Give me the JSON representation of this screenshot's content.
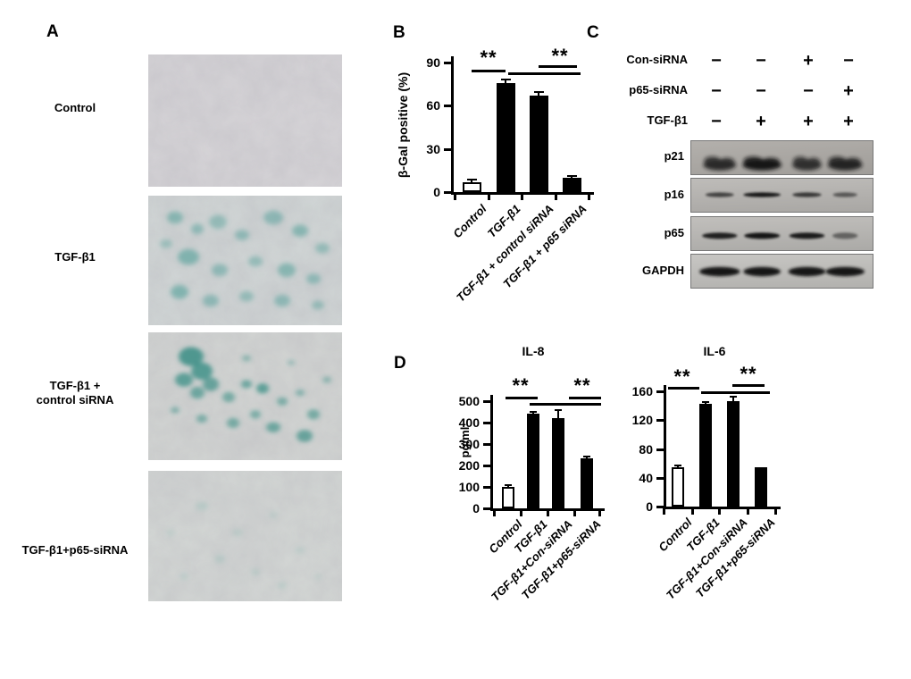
{
  "panel_a": {
    "label": "A",
    "images": [
      {
        "label": "Control",
        "xgal_staining": "negative"
      },
      {
        "label": "TGF-β1",
        "xgal_staining": "strong"
      },
      {
        "label": "TGF-β1 +\ncontrol siRNA",
        "xgal_staining": "strong"
      },
      {
        "label": "TGF-β1+p65-siRNA",
        "xgal_staining": "weak"
      }
    ]
  },
  "panel_b": {
    "label": "B"
  },
  "panel_c": {
    "label": "C",
    "conditions": [
      {
        "name": "Con-siRNA",
        "lanes": [
          "−",
          "−",
          "+",
          "−"
        ]
      },
      {
        "name": "p65-siRNA",
        "lanes": [
          "−",
          "−",
          "−",
          "+"
        ]
      },
      {
        "name": "TGF-β1",
        "lanes": [
          "−",
          "+",
          "+",
          "+"
        ]
      }
    ],
    "blots": [
      {
        "name": "p21",
        "band_intensities": [
          0.8,
          1.0,
          0.75,
          0.85
        ]
      },
      {
        "name": "p16",
        "band_intensities": [
          0.6,
          1.0,
          0.7,
          0.4
        ]
      },
      {
        "name": "p65",
        "band_intensities": [
          0.9,
          1.0,
          0.95,
          0.3
        ]
      },
      {
        "name": "GAPDH",
        "band_intensities": [
          1.0,
          1.0,
          1.0,
          1.0
        ]
      }
    ]
  },
  "panel_d": {
    "label": "D"
  },
  "chart_data": [
    {
      "id": "beta-gal",
      "type": "bar",
      "title": "",
      "ylabel": "β-Gal positive (%)",
      "ylim": [
        0,
        90
      ],
      "yticks": [
        0,
        30,
        60,
        90
      ],
      "categories": [
        "Control",
        "TGF-β1",
        "TGF-β1 + control siRNA",
        "TGF-β1 + p65 siRNA"
      ],
      "values": [
        7,
        76,
        67,
        10
      ],
      "errors": [
        1.5,
        2,
        2.5,
        1
      ],
      "bar_colors": [
        "#ffffff",
        "#000000",
        "#000000",
        "#000000"
      ],
      "grid": false,
      "significance": [
        {
          "label": "**",
          "compares": [
            "Control",
            "TGF-β1"
          ]
        },
        {
          "label": "**",
          "compares": [
            "TGF-β1",
            "TGF-β1 + p65 siRNA"
          ]
        }
      ]
    },
    {
      "id": "il8",
      "type": "bar",
      "title": "IL-8",
      "ylabel": "pg/ml",
      "ylim": [
        0,
        500
      ],
      "yticks": [
        0,
        100,
        200,
        300,
        400,
        500
      ],
      "categories": [
        "Control",
        "TGF-β1",
        "TGF-β1+Con-siRNA",
        "TGF-β1+p65-siRNA"
      ],
      "values": [
        100,
        440,
        420,
        235
      ],
      "errors": [
        8,
        8,
        40,
        5
      ],
      "bar_colors": [
        "#ffffff",
        "#000000",
        "#000000",
        "#000000"
      ],
      "grid": false,
      "significance": [
        {
          "label": "**",
          "compares": [
            "Control",
            "TGF-β1"
          ]
        },
        {
          "label": "**",
          "compares": [
            "TGF-β1",
            "TGF-β1+p65-siRNA"
          ]
        }
      ]
    },
    {
      "id": "il6",
      "type": "bar",
      "title": "IL-6",
      "ylabel": "",
      "ylim": [
        0,
        160
      ],
      "yticks": [
        0,
        40,
        80,
        120,
        160
      ],
      "categories": [
        "Control",
        "TGF-β1",
        "TGF-β1+Con-siRNA",
        "TGF-β1+p65-siRNA"
      ],
      "values": [
        55,
        143,
        146,
        55
      ],
      "errors": [
        2,
        2,
        6,
        0
      ],
      "bar_colors": [
        "#ffffff",
        "#000000",
        "#000000",
        "#000000"
      ],
      "grid": false,
      "significance": [
        {
          "label": "**",
          "compares": [
            "Control",
            "TGF-β1"
          ]
        },
        {
          "label": "**",
          "compares": [
            "TGF-β1",
            "TGF-β1+p65-siRNA"
          ]
        }
      ]
    }
  ]
}
